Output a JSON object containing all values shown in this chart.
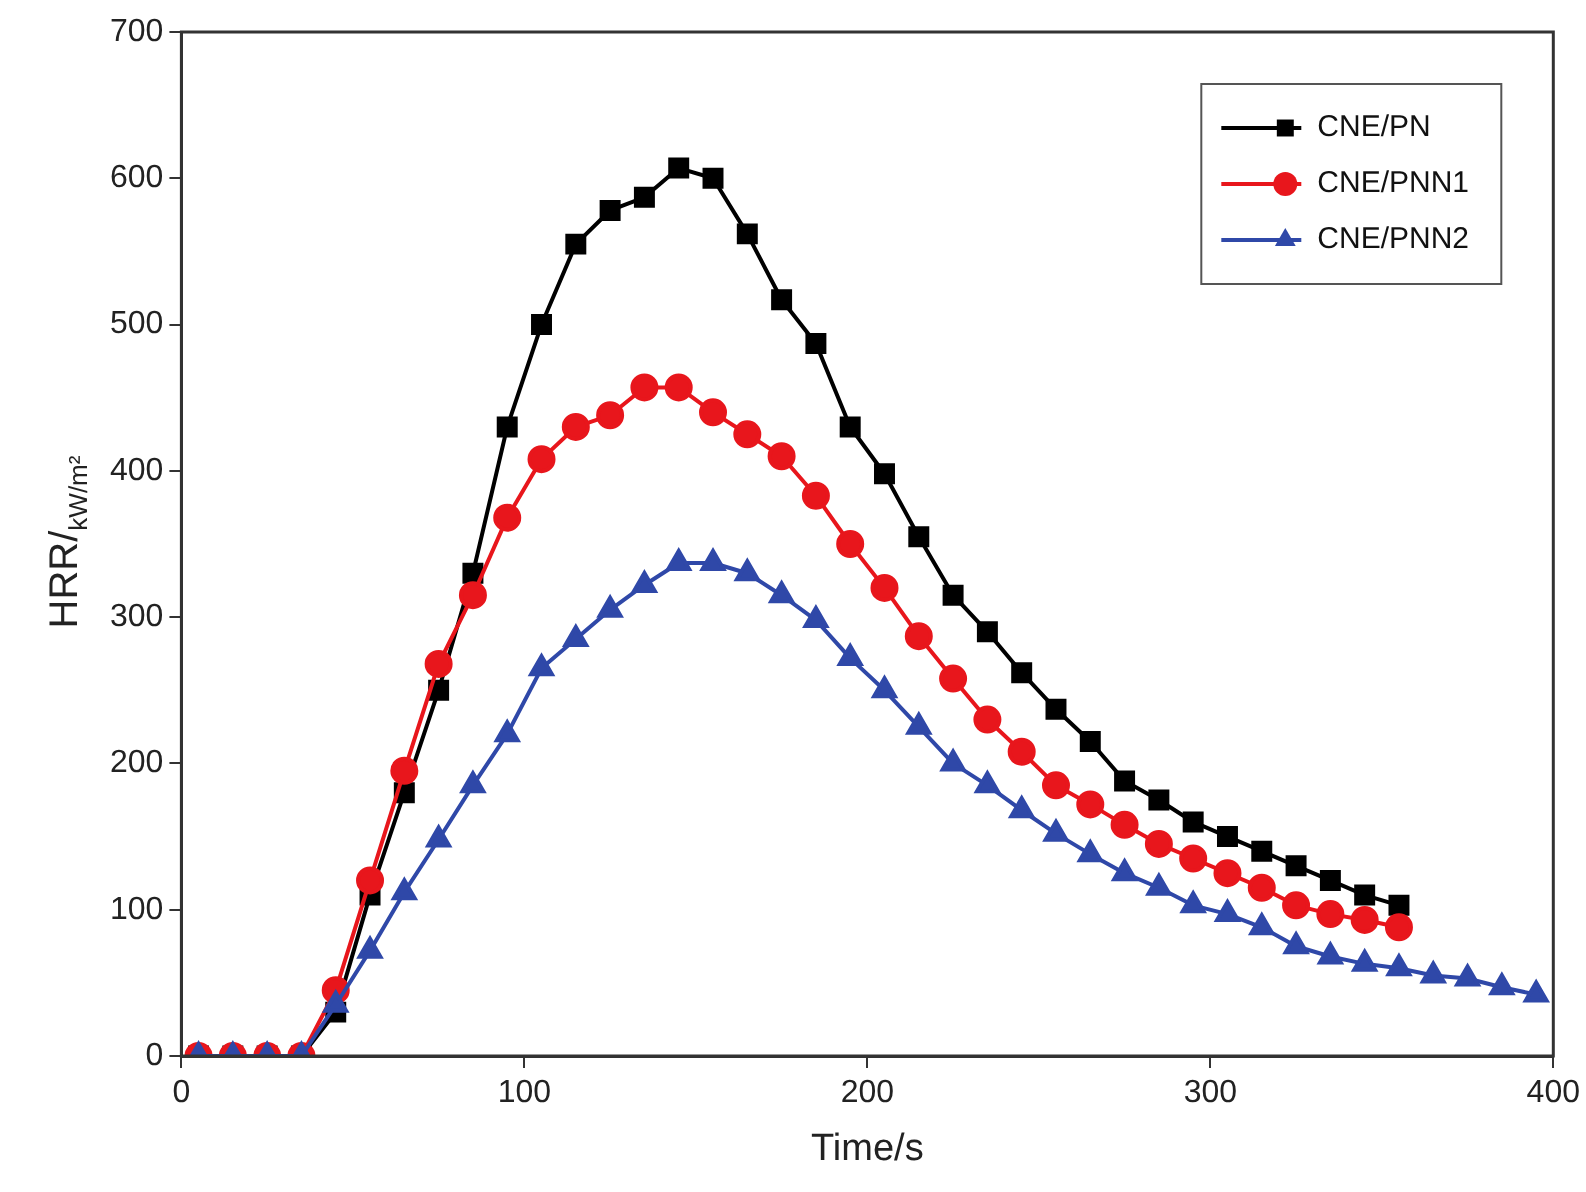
{
  "chart_data": {
    "type": "line",
    "xlabel": "Time/s",
    "ylabel": "HRR/$_{kW/m²}$",
    "xlim": [
      0,
      400
    ],
    "ylim": [
      0,
      700
    ],
    "xticks": [
      0,
      100,
      200,
      300,
      400
    ],
    "yticks": [
      0,
      100,
      200,
      300,
      400,
      500,
      600,
      700
    ],
    "grid": false,
    "legend": "top right",
    "line_style": "solid",
    "x": [
      5,
      15,
      25,
      35,
      45,
      55,
      65,
      75,
      85,
      95,
      105,
      115,
      125,
      135,
      145,
      155,
      165,
      175,
      185,
      195,
      205,
      215,
      225,
      235,
      245,
      255,
      265,
      275,
      285,
      295,
      305,
      315,
      325,
      335,
      345,
      355,
      365,
      375,
      385,
      395
    ],
    "series": [
      {
        "name": "CNE/PN",
        "color": "#000000",
        "marker": "square",
        "values": [
          0,
          0,
          0,
          0,
          30,
          110,
          180,
          250,
          330,
          430,
          500,
          555,
          578,
          587,
          607,
          600,
          562,
          517,
          487,
          430,
          398,
          355,
          315,
          290,
          262,
          237,
          215,
          188,
          175,
          160,
          150,
          140,
          130,
          120,
          110,
          103,
          null,
          null,
          null,
          null
        ]
      },
      {
        "name": "CNE/PNN1",
        "color": "#e8161c",
        "marker": "circle",
        "values": [
          0,
          0,
          0,
          0,
          45,
          120,
          195,
          268,
          315,
          368,
          408,
          430,
          438,
          457,
          457,
          440,
          425,
          410,
          383,
          350,
          320,
          287,
          258,
          230,
          208,
          185,
          172,
          158,
          145,
          135,
          125,
          115,
          103,
          97,
          93,
          88,
          null,
          null,
          null,
          null
        ]
      },
      {
        "name": "CNE/PNN2",
        "color": "#2f48a8",
        "marker": "triangle",
        "values": [
          0,
          0,
          0,
          0,
          35,
          72,
          112,
          148,
          185,
          220,
          265,
          285,
          305,
          322,
          337,
          337,
          330,
          315,
          298,
          272,
          250,
          225,
          200,
          185,
          168,
          152,
          138,
          125,
          115,
          103,
          97,
          88,
          75,
          68,
          63,
          60,
          55,
          53,
          47,
          42
        ]
      }
    ]
  }
}
